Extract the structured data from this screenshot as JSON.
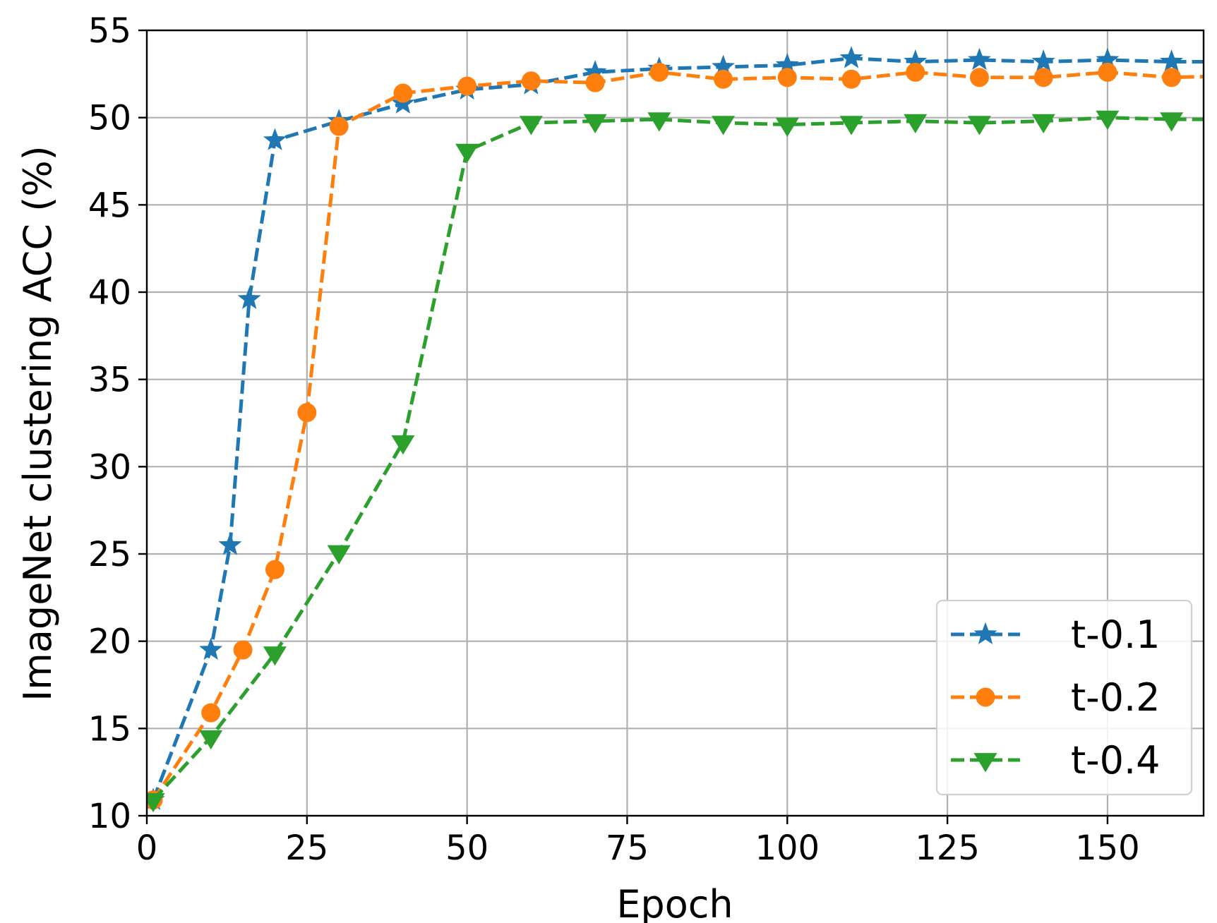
{
  "chart_data": {
    "type": "line",
    "xlabel": "Epoch",
    "ylabel": "ImageNet clustering ACC (%)",
    "xlim": [
      0,
      165
    ],
    "ylim": [
      10,
      55
    ],
    "xticks": [
      0,
      25,
      50,
      75,
      100,
      125,
      150
    ],
    "yticks": [
      10,
      15,
      20,
      25,
      30,
      35,
      40,
      45,
      50,
      55
    ],
    "grid": true,
    "legend_position": "lower-right",
    "series": [
      {
        "name": "t-0.1",
        "color": "#1f77b4",
        "marker": "star",
        "linestyle": "dashed",
        "x": [
          1,
          10,
          13,
          16,
          20,
          30,
          40,
          50,
          60,
          70,
          80,
          90,
          100,
          110,
          120,
          130,
          140,
          150,
          160,
          170
        ],
        "y": [
          10.9,
          19.5,
          25.5,
          39.6,
          48.7,
          49.8,
          50.8,
          51.6,
          51.9,
          52.6,
          52.8,
          52.9,
          53.0,
          53.4,
          53.2,
          53.3,
          53.2,
          53.3,
          53.2,
          53.2
        ]
      },
      {
        "name": "t-0.2",
        "color": "#ff7f0e",
        "marker": "circle",
        "linestyle": "dashed",
        "x": [
          1,
          10,
          15,
          20,
          25,
          30,
          40,
          50,
          60,
          70,
          80,
          90,
          100,
          110,
          120,
          130,
          140,
          150,
          160,
          170
        ],
        "y": [
          10.9,
          15.9,
          19.5,
          24.1,
          33.1,
          49.5,
          51.4,
          51.8,
          52.1,
          52.0,
          52.6,
          52.2,
          52.3,
          52.2,
          52.6,
          52.3,
          52.3,
          52.6,
          52.3,
          52.4
        ]
      },
      {
        "name": "t-0.4",
        "color": "#2ca02c",
        "marker": "triangle-down",
        "linestyle": "dashed",
        "x": [
          1,
          10,
          20,
          30,
          40,
          50,
          60,
          70,
          80,
          90,
          100,
          110,
          120,
          130,
          140,
          150,
          160,
          170
        ],
        "y": [
          10.9,
          14.5,
          19.3,
          25.1,
          31.4,
          48.1,
          49.7,
          49.8,
          49.9,
          49.7,
          49.6,
          49.7,
          49.8,
          49.7,
          49.8,
          50.0,
          49.9,
          49.9
        ]
      }
    ]
  }
}
